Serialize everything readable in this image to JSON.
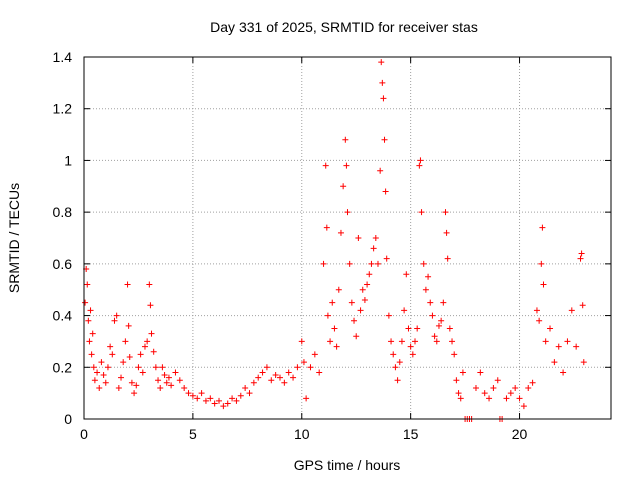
{
  "chart_data": {
    "type": "scatter",
    "title": "Day 331 of 2025, SRMTID for receiver stas",
    "xlabel": "GPS time / hours",
    "ylabel": "SRMTID / TECUs",
    "xlim": [
      0,
      24.2
    ],
    "ylim": [
      0,
      1.4
    ],
    "xticks": [
      0,
      5,
      10,
      15,
      20
    ],
    "xtick_labels": [
      "0",
      "5",
      "10",
      "15",
      "20"
    ],
    "yticks": [
      0,
      0.2,
      0.4,
      0.6,
      0.8,
      1,
      1.2,
      1.4
    ],
    "ytick_labels": [
      "0",
      "0.2",
      "0.4",
      "0.6",
      "0.8",
      "1",
      "1.2",
      "1.4"
    ],
    "grid": true,
    "marker": "+",
    "series": [
      {
        "name": "SRMTID",
        "color": "#ff0000",
        "points": [
          [
            0.05,
            0.45
          ],
          [
            0.1,
            0.58
          ],
          [
            0.15,
            0.52
          ],
          [
            0.2,
            0.38
          ],
          [
            0.25,
            0.3
          ],
          [
            0.3,
            0.42
          ],
          [
            0.35,
            0.25
          ],
          [
            0.4,
            0.33
          ],
          [
            0.45,
            0.2
          ],
          [
            0.5,
            0.15
          ],
          [
            0.6,
            0.18
          ],
          [
            0.7,
            0.12
          ],
          [
            0.8,
            0.22
          ],
          [
            0.9,
            0.17
          ],
          [
            1.0,
            0.14
          ],
          [
            1.1,
            0.2
          ],
          [
            1.2,
            0.28
          ],
          [
            1.3,
            0.25
          ],
          [
            1.4,
            0.38
          ],
          [
            1.5,
            0.4
          ],
          [
            1.6,
            0.12
          ],
          [
            1.7,
            0.16
          ],
          [
            1.8,
            0.22
          ],
          [
            1.9,
            0.3
          ],
          [
            2.0,
            0.52
          ],
          [
            2.05,
            0.36
          ],
          [
            2.1,
            0.24
          ],
          [
            2.2,
            0.14
          ],
          [
            2.3,
            0.1
          ],
          [
            2.4,
            0.13
          ],
          [
            2.5,
            0.2
          ],
          [
            2.6,
            0.25
          ],
          [
            2.7,
            0.18
          ],
          [
            2.8,
            0.28
          ],
          [
            2.9,
            0.3
          ],
          [
            3.0,
            0.52
          ],
          [
            3.05,
            0.44
          ],
          [
            3.1,
            0.33
          ],
          [
            3.2,
            0.26
          ],
          [
            3.3,
            0.2
          ],
          [
            3.4,
            0.15
          ],
          [
            3.5,
            0.12
          ],
          [
            3.6,
            0.2
          ],
          [
            3.7,
            0.17
          ],
          [
            3.8,
            0.14
          ],
          [
            3.9,
            0.16
          ],
          [
            4.0,
            0.13
          ],
          [
            4.2,
            0.18
          ],
          [
            4.4,
            0.15
          ],
          [
            4.6,
            0.12
          ],
          [
            4.8,
            0.1
          ],
          [
            5.0,
            0.09
          ],
          [
            5.2,
            0.08
          ],
          [
            5.4,
            0.1
          ],
          [
            5.6,
            0.07
          ],
          [
            5.8,
            0.08
          ],
          [
            6.0,
            0.06
          ],
          [
            6.2,
            0.07
          ],
          [
            6.4,
            0.05
          ],
          [
            6.6,
            0.06
          ],
          [
            6.8,
            0.08
          ],
          [
            7.0,
            0.07
          ],
          [
            7.2,
            0.09
          ],
          [
            7.4,
            0.12
          ],
          [
            7.6,
            0.1
          ],
          [
            7.8,
            0.14
          ],
          [
            8.0,
            0.16
          ],
          [
            8.2,
            0.18
          ],
          [
            8.4,
            0.2
          ],
          [
            8.6,
            0.15
          ],
          [
            8.8,
            0.17
          ],
          [
            9.0,
            0.16
          ],
          [
            9.2,
            0.14
          ],
          [
            9.4,
            0.18
          ],
          [
            9.6,
            0.16
          ],
          [
            9.8,
            0.2
          ],
          [
            10.0,
            0.3
          ],
          [
            10.1,
            0.22
          ],
          [
            10.2,
            0.08
          ],
          [
            10.4,
            0.2
          ],
          [
            10.6,
            0.25
          ],
          [
            10.8,
            0.18
          ],
          [
            11.0,
            0.6
          ],
          [
            11.1,
            0.98
          ],
          [
            11.15,
            0.74
          ],
          [
            11.2,
            0.4
          ],
          [
            11.3,
            0.3
          ],
          [
            11.4,
            0.45
          ],
          [
            11.5,
            0.35
          ],
          [
            11.6,
            0.28
          ],
          [
            11.7,
            0.5
          ],
          [
            11.8,
            0.72
          ],
          [
            11.9,
            0.9
          ],
          [
            12.0,
            1.08
          ],
          [
            12.05,
            0.98
          ],
          [
            12.1,
            0.8
          ],
          [
            12.2,
            0.6
          ],
          [
            12.3,
            0.45
          ],
          [
            12.4,
            0.38
          ],
          [
            12.5,
            0.32
          ],
          [
            12.6,
            0.7
          ],
          [
            12.7,
            0.42
          ],
          [
            12.8,
            0.5
          ],
          [
            12.9,
            0.46
          ],
          [
            13.0,
            0.52
          ],
          [
            13.1,
            0.56
          ],
          [
            13.2,
            0.6
          ],
          [
            13.3,
            0.66
          ],
          [
            13.4,
            0.7
          ],
          [
            13.5,
            0.6
          ],
          [
            13.6,
            0.96
          ],
          [
            13.65,
            1.38
          ],
          [
            13.7,
            1.3
          ],
          [
            13.75,
            1.24
          ],
          [
            13.8,
            1.08
          ],
          [
            13.85,
            0.88
          ],
          [
            13.9,
            0.62
          ],
          [
            14.0,
            0.4
          ],
          [
            14.1,
            0.3
          ],
          [
            14.2,
            0.25
          ],
          [
            14.3,
            0.2
          ],
          [
            14.4,
            0.15
          ],
          [
            14.5,
            0.22
          ],
          [
            14.6,
            0.3
          ],
          [
            14.7,
            0.42
          ],
          [
            14.8,
            0.56
          ],
          [
            14.9,
            0.35
          ],
          [
            15.0,
            0.28
          ],
          [
            15.1,
            0.25
          ],
          [
            15.2,
            0.3
          ],
          [
            15.3,
            0.35
          ],
          [
            15.4,
            0.98
          ],
          [
            15.45,
            1.0
          ],
          [
            15.5,
            0.8
          ],
          [
            15.6,
            0.6
          ],
          [
            15.7,
            0.5
          ],
          [
            15.8,
            0.55
          ],
          [
            15.9,
            0.45
          ],
          [
            16.0,
            0.4
          ],
          [
            16.1,
            0.32
          ],
          [
            16.2,
            0.3
          ],
          [
            16.3,
            0.36
          ],
          [
            16.4,
            0.38
          ],
          [
            16.5,
            0.45
          ],
          [
            16.6,
            0.8
          ],
          [
            16.65,
            0.72
          ],
          [
            16.7,
            0.62
          ],
          [
            16.8,
            0.35
          ],
          [
            16.9,
            0.3
          ],
          [
            17.0,
            0.25
          ],
          [
            17.1,
            0.15
          ],
          [
            17.2,
            0.1
          ],
          [
            17.3,
            0.08
          ],
          [
            17.4,
            0.18
          ],
          [
            17.5,
            0.0
          ],
          [
            17.6,
            0.0
          ],
          [
            17.7,
            0.0
          ],
          [
            17.8,
            0.0
          ],
          [
            18.0,
            0.12
          ],
          [
            18.2,
            0.18
          ],
          [
            18.4,
            0.1
          ],
          [
            18.6,
            0.08
          ],
          [
            18.8,
            0.12
          ],
          [
            19.0,
            0.15
          ],
          [
            19.1,
            0.0
          ],
          [
            19.2,
            0.0
          ],
          [
            19.4,
            0.08
          ],
          [
            19.6,
            0.1
          ],
          [
            19.8,
            0.12
          ],
          [
            20.0,
            0.08
          ],
          [
            20.2,
            0.05
          ],
          [
            20.4,
            0.12
          ],
          [
            20.6,
            0.14
          ],
          [
            20.8,
            0.42
          ],
          [
            20.9,
            0.38
          ],
          [
            21.0,
            0.6
          ],
          [
            21.05,
            0.74
          ],
          [
            21.1,
            0.52
          ],
          [
            21.2,
            0.3
          ],
          [
            21.4,
            0.35
          ],
          [
            21.6,
            0.22
          ],
          [
            21.8,
            0.28
          ],
          [
            22.0,
            0.18
          ],
          [
            22.2,
            0.3
          ],
          [
            22.4,
            0.42
          ],
          [
            22.6,
            0.28
          ],
          [
            22.8,
            0.62
          ],
          [
            22.85,
            0.64
          ],
          [
            22.9,
            0.44
          ],
          [
            22.95,
            0.22
          ]
        ]
      }
    ]
  }
}
